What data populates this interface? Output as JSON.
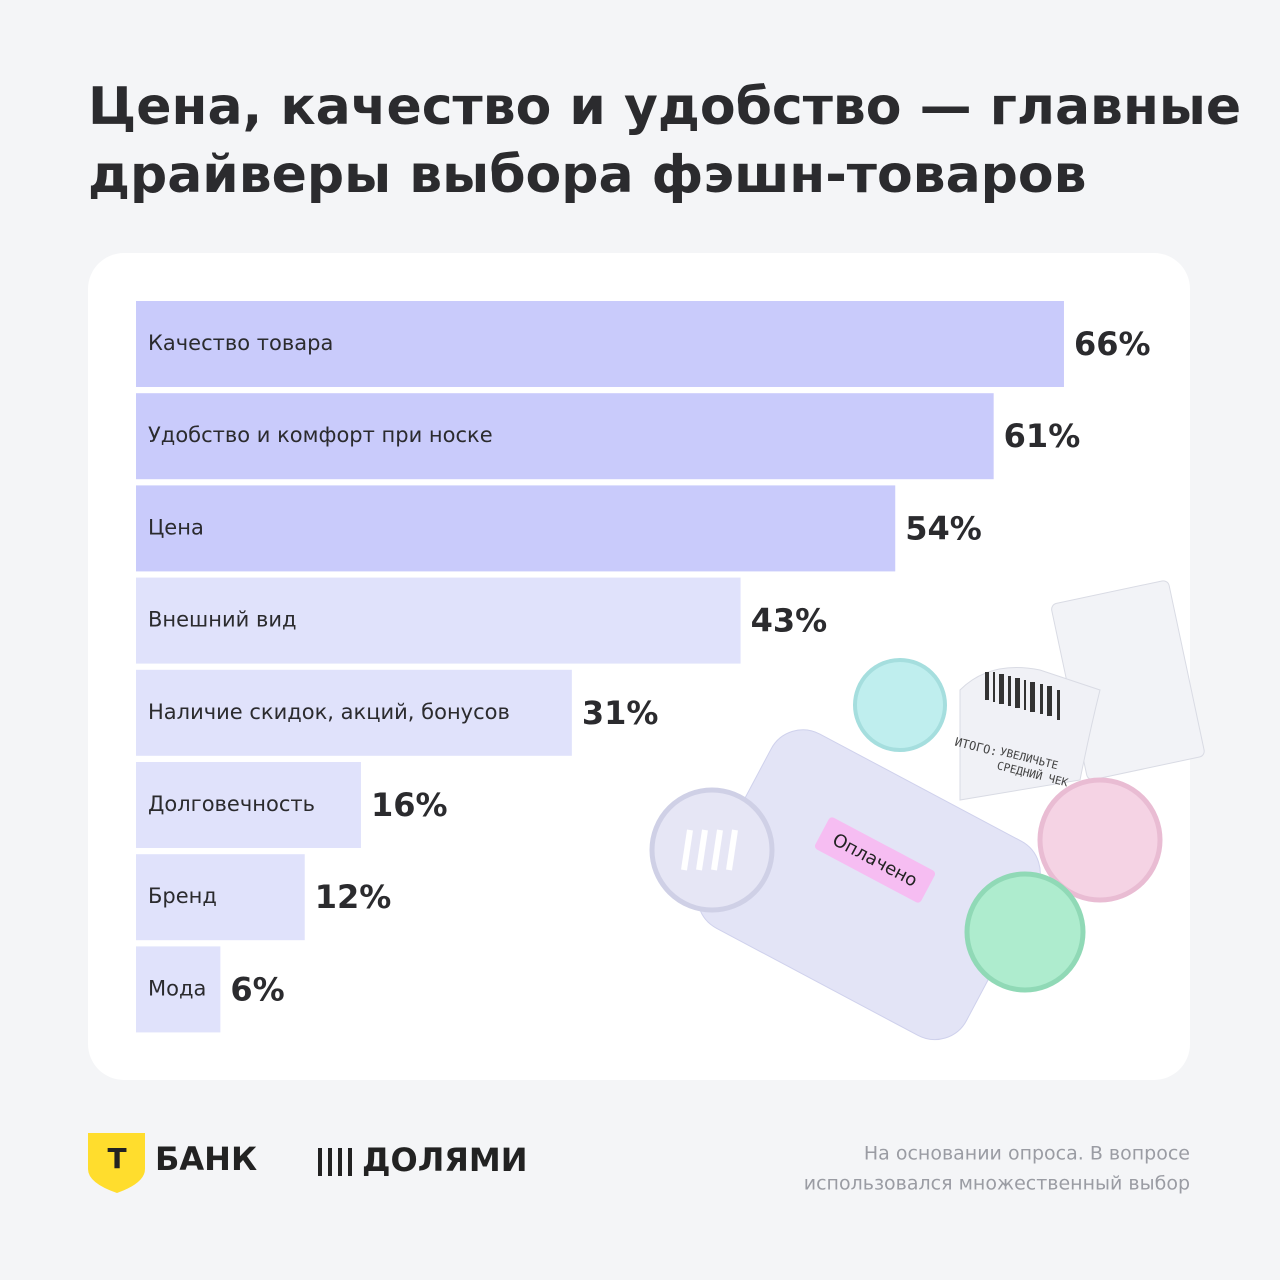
{
  "chart_data": {
    "type": "bar",
    "orientation": "horizontal",
    "title": [
      "Цена, качество и удобство — главные",
      "драйверы выбора фэшн-товаров"
    ],
    "categories": [
      "Качество товара",
      "Удобство и комфорт при носке",
      "Цена",
      "Внешний вид",
      "Наличие скидок, акций, бонусов",
      "Долговечность",
      "Бренд",
      "Мода"
    ],
    "values": [
      66,
      61,
      54,
      43,
      31,
      16,
      12,
      6
    ],
    "value_labels": [
      "66%",
      "61%",
      "54%",
      "43%",
      "31%",
      "16%",
      "12%",
      "6%"
    ],
    "colors": [
      "#c9cbfb",
      "#c9cbfb",
      "#c9cbfb",
      "#e0e2fb",
      "#e0e2fb",
      "#e0e2fb",
      "#e0e2fb",
      "#e0e2fb"
    ]
  },
  "illustration": {
    "badge": "Оплачено",
    "receipt_total": "ИТОГО:",
    "receipt_note": [
      "УВЕЛИЧЬТЕ",
      "СРЕДНИЙ ЧЕК"
    ]
  },
  "footer": {
    "bank": "БАНК",
    "bank_mark": "Т",
    "product": "ДОЛЯМИ",
    "note": [
      "На основании опроса. В вопросе",
      "использовался множественный выбор"
    ]
  }
}
